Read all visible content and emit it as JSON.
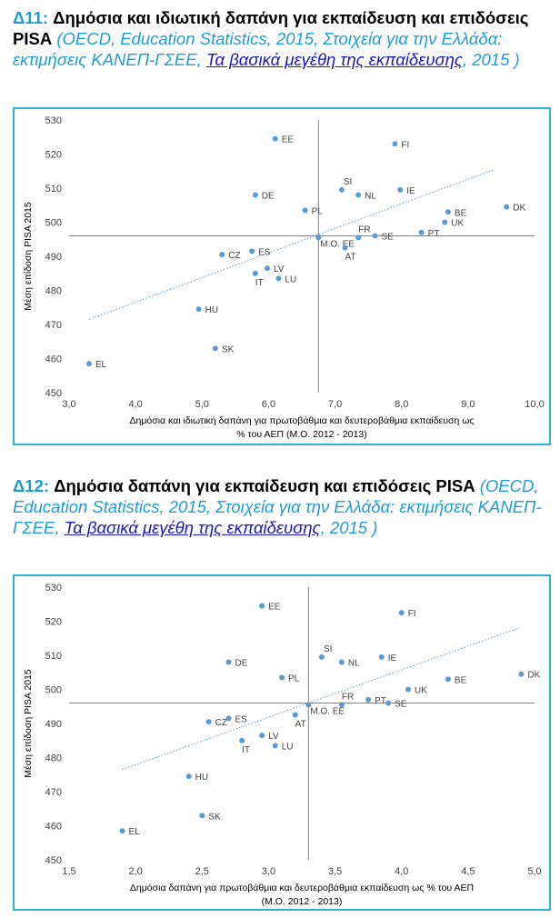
{
  "figures": [
    {
      "code": "Δ11:",
      "title": "Δημόσια και ιδιωτική δαπάνη για εκπαίδευση και επιδόσεις PISA",
      "source_open": "(OECD, Education Statistics, 2015, Στοιχεία για την Ελλάδα: εκτιμήσεις ΚΑΝΕΠ-ΓΣΕΕ,",
      "source_link": "Τα βασικά μεγέθη της εκπαίδευσης",
      "source_close": ", 2015 )"
    },
    {
      "code": "Δ12:",
      "title": "Δημόσια δαπάνη για εκπαίδευση και επιδόσεις PISA",
      "source_open": "(OECD, Education Statistics, 2015, Στοιχεία για την Ελλάδα: εκτιμήσεις ΚΑΝΕΠ-ΓΣΕΕ,",
      "source_link": "Τα βασικά μεγέθη της εκπαίδευσης",
      "source_close": ", 2015 )"
    }
  ],
  "colors": {
    "point": "#5b9bd5",
    "accent": "#1a9bd1",
    "border": "#2bb4d6",
    "trend": "#5b9bd5",
    "refline": "#808080"
  },
  "chart_data": [
    {
      "type": "scatter",
      "title": "",
      "xlabel": "Δημόσια και ιδιωτική δαπάνη για πρωτοβάθμια και δευτεροβάθμια εκπαίδευση ως",
      "xlabel2": "% του ΑΕΠ (Μ.Ο. 2012 - 2013)",
      "ylabel": "Μέση επίδοση PISA 2015",
      "xlim": [
        3.0,
        10.0
      ],
      "ylim": [
        450,
        530
      ],
      "xticks": [
        3.0,
        4.0,
        5.0,
        6.0,
        7.0,
        8.0,
        9.0,
        10.0
      ],
      "xtick_labels": [
        "3,0",
        "4,0",
        "5,0",
        "6,0",
        "7,0",
        "8,0",
        "9,0",
        "10,0"
      ],
      "yticks": [
        450,
        460,
        470,
        480,
        490,
        500,
        510,
        520,
        530
      ],
      "grid": false,
      "reference_lines": {
        "x": 6.75,
        "y": 496
      },
      "trendline": {
        "x": [
          3.3,
          9.4
        ],
        "y": [
          471.5,
          515.5
        ],
        "style": "dotted"
      },
      "points": [
        {
          "label": "EE",
          "x": 6.1,
          "y": 524.5
        },
        {
          "label": "FI",
          "x": 7.9,
          "y": 523
        },
        {
          "label": "SI",
          "x": 7.1,
          "y": 509.5
        },
        {
          "label": "NL",
          "x": 7.35,
          "y": 508
        },
        {
          "label": "IE",
          "x": 7.98,
          "y": 509.5
        },
        {
          "label": "DE",
          "x": 5.8,
          "y": 508
        },
        {
          "label": "PL",
          "x": 6.55,
          "y": 503.5
        },
        {
          "label": "BE",
          "x": 8.7,
          "y": 503
        },
        {
          "label": "DK",
          "x": 9.58,
          "y": 504.5
        },
        {
          "label": "UK",
          "x": 8.65,
          "y": 500
        },
        {
          "label": "PT",
          "x": 8.3,
          "y": 497
        },
        {
          "label": "FR",
          "x": 7.35,
          "y": 495.5
        },
        {
          "label": "SE",
          "x": 7.6,
          "y": 496
        },
        {
          "label": "Μ.Ο. ΕΕ",
          "x": 6.75,
          "y": 495.5
        },
        {
          "label": "AT",
          "x": 7.15,
          "y": 492.5
        },
        {
          "label": "CZ",
          "x": 5.3,
          "y": 490.5
        },
        {
          "label": "ES",
          "x": 5.75,
          "y": 491.5
        },
        {
          "label": "LV",
          "x": 5.98,
          "y": 486.5
        },
        {
          "label": "IT",
          "x": 5.8,
          "y": 485
        },
        {
          "label": "LU",
          "x": 6.15,
          "y": 483.5
        },
        {
          "label": "HU",
          "x": 4.95,
          "y": 474.5
        },
        {
          "label": "SK",
          "x": 5.2,
          "y": 463
        },
        {
          "label": "EL",
          "x": 3.3,
          "y": 458.5
        }
      ]
    },
    {
      "type": "scatter",
      "title": "",
      "xlabel": "Δημόσια δαπάνη για πρωτοβάθμια και δευτεροβάθμια εκπαίδευση ως % του ΑΕΠ",
      "xlabel2": "(Μ.Ο. 2012 - 2013)",
      "ylabel": "Μέση επίδοση PISA 2015",
      "xlim": [
        1.5,
        5.0
      ],
      "ylim": [
        450,
        530
      ],
      "xticks": [
        1.5,
        2.0,
        2.5,
        3.0,
        3.5,
        4.0,
        4.5,
        5.0
      ],
      "xtick_labels": [
        "1,5",
        "2,0",
        "2,5",
        "3,0",
        "3,5",
        "4,0",
        "4,5",
        "5,0"
      ],
      "yticks": [
        450,
        460,
        470,
        480,
        490,
        500,
        510,
        520,
        530
      ],
      "grid": false,
      "reference_lines": {
        "x": 3.3,
        "y": 496
      },
      "trendline": {
        "x": [
          1.9,
          4.88
        ],
        "y": [
          476.5,
          518
        ],
        "style": "dotted"
      },
      "points": [
        {
          "label": "EE",
          "x": 2.95,
          "y": 524.5
        },
        {
          "label": "FI",
          "x": 4.0,
          "y": 522.5
        },
        {
          "label": "SI",
          "x": 3.4,
          "y": 509.5
        },
        {
          "label": "NL",
          "x": 3.55,
          "y": 508
        },
        {
          "label": "IE",
          "x": 3.85,
          "y": 509.5
        },
        {
          "label": "DE",
          "x": 2.7,
          "y": 508
        },
        {
          "label": "PL",
          "x": 3.1,
          "y": 503.5
        },
        {
          "label": "BE",
          "x": 4.35,
          "y": 503
        },
        {
          "label": "DK",
          "x": 4.9,
          "y": 504.5
        },
        {
          "label": "UK",
          "x": 4.05,
          "y": 500
        },
        {
          "label": "PT",
          "x": 3.75,
          "y": 497
        },
        {
          "label": "SE",
          "x": 3.9,
          "y": 496
        },
        {
          "label": "FR",
          "x": 3.55,
          "y": 495.5
        },
        {
          "label": "Μ.Ο. ΕΕ",
          "x": 3.3,
          "y": 495.5
        },
        {
          "label": "AT",
          "x": 3.2,
          "y": 492.5
        },
        {
          "label": "CZ",
          "x": 2.55,
          "y": 490.5
        },
        {
          "label": "ES",
          "x": 2.7,
          "y": 491.5
        },
        {
          "label": "LV",
          "x": 2.95,
          "y": 486.5
        },
        {
          "label": "IT",
          "x": 2.8,
          "y": 485
        },
        {
          "label": "LU",
          "x": 3.05,
          "y": 483.5
        },
        {
          "label": "HU",
          "x": 2.4,
          "y": 474.5
        },
        {
          "label": "SK",
          "x": 2.5,
          "y": 463
        },
        {
          "label": "EL",
          "x": 1.9,
          "y": 458.5
        }
      ]
    }
  ]
}
